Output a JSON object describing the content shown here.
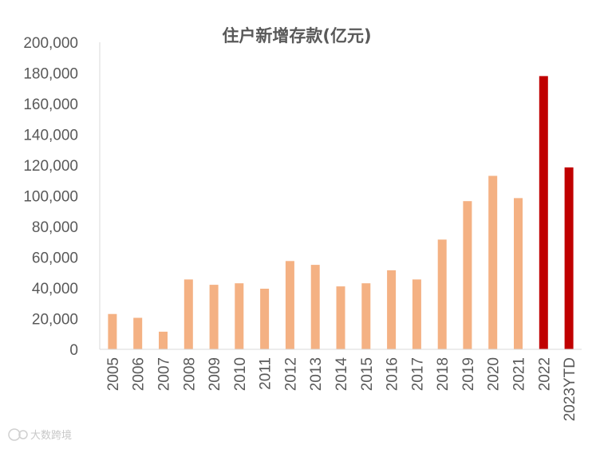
{
  "chart_data": {
    "type": "bar",
    "title": "住户新增存款(亿元)",
    "categories": [
      "2005",
      "2006",
      "2007",
      "2008",
      "2009",
      "2010",
      "2011",
      "2012",
      "2013",
      "2014",
      "2015",
      "2016",
      "2017",
      "2018",
      "2019",
      "2020",
      "2021",
      "2022",
      "2023YTD"
    ],
    "values": [
      23000,
      20500,
      11500,
      45500,
      42000,
      43000,
      39500,
      57500,
      55000,
      41000,
      43000,
      51500,
      45500,
      71500,
      96500,
      113000,
      98500,
      178000,
      118500
    ],
    "highlighted": [
      "2022",
      "2023YTD"
    ],
    "ylim": [
      0,
      200000
    ],
    "yticks": [
      "0",
      "20,000",
      "40,000",
      "60,000",
      "80,000",
      "100,000",
      "120,000",
      "140,000",
      "160,000",
      "180,000",
      "200,000"
    ],
    "xlabel": "",
    "ylabel": "",
    "grid": false,
    "colors": {
      "bar": "#f4b183",
      "highlight": "#c00000",
      "axis": "#d9d9d9",
      "text": "#595959"
    }
  },
  "watermark": {
    "text": "大数跨境"
  }
}
